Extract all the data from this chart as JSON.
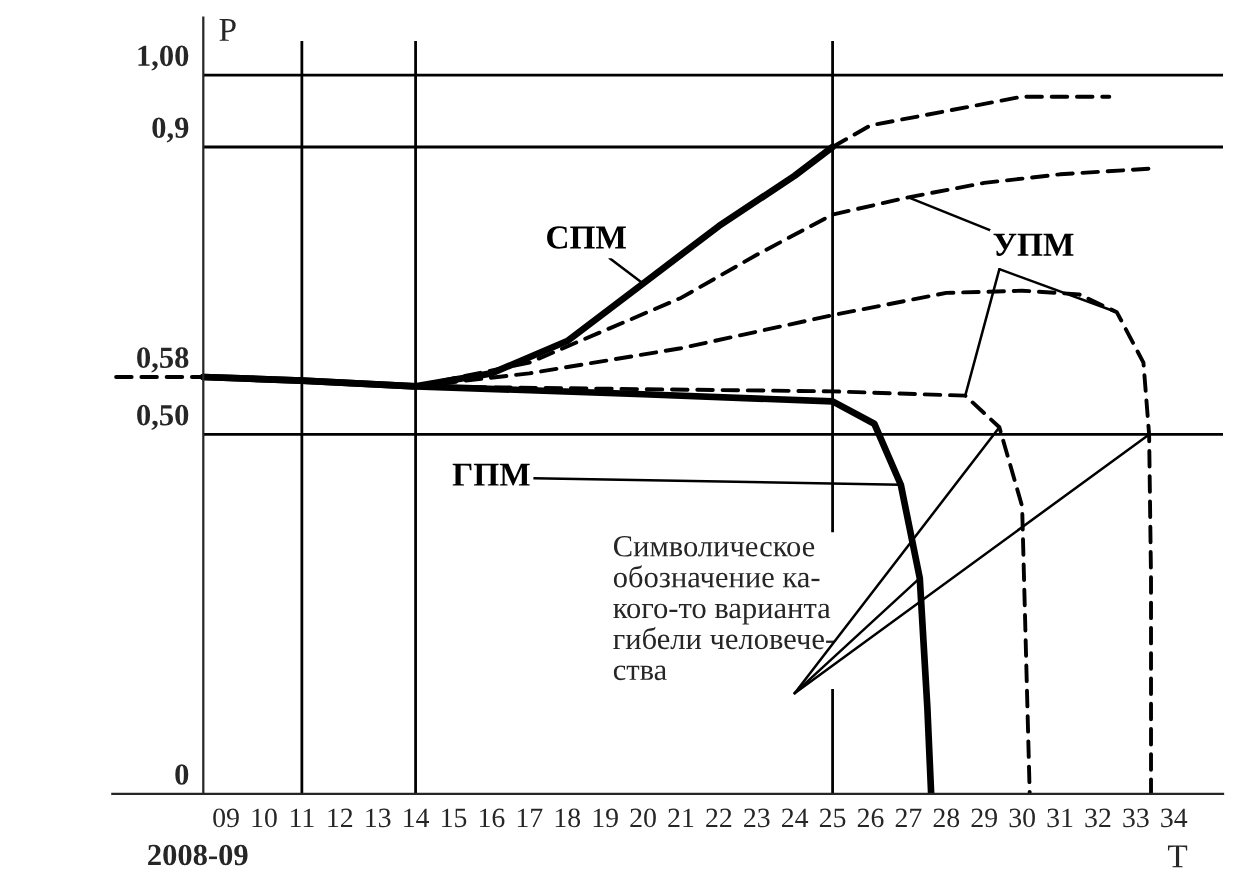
{
  "chart_data": {
    "type": "line",
    "xlabel": "T",
    "ylabel": "P",
    "xlim": [
      6,
      35.3
    ],
    "ylim": [
      0,
      1.08
    ],
    "xticks": [
      {
        "value": 9,
        "label": "09"
      },
      {
        "value": 10,
        "label": "10"
      },
      {
        "value": 11,
        "label": "11"
      },
      {
        "value": 12,
        "label": "12"
      },
      {
        "value": 13,
        "label": "13"
      },
      {
        "value": 14,
        "label": "14"
      },
      {
        "value": 15,
        "label": "15"
      },
      {
        "value": 16,
        "label": "16"
      },
      {
        "value": 17,
        "label": "17"
      },
      {
        "value": 18,
        "label": "18"
      },
      {
        "value": 19,
        "label": "19"
      },
      {
        "value": 20,
        "label": "20"
      },
      {
        "value": 21,
        "label": "21"
      },
      {
        "value": 22,
        "label": "22"
      },
      {
        "value": 23,
        "label": "23"
      },
      {
        "value": 24,
        "label": "24"
      },
      {
        "value": 25,
        "label": "25"
      },
      {
        "value": 26,
        "label": "26"
      },
      {
        "value": 27,
        "label": "27"
      },
      {
        "value": 28,
        "label": "28"
      },
      {
        "value": 29,
        "label": "29"
      },
      {
        "value": 30,
        "label": "30"
      },
      {
        "value": 31,
        "label": "31"
      },
      {
        "value": 32,
        "label": "32"
      },
      {
        "value": 33,
        "label": "33"
      },
      {
        "value": 34,
        "label": "34"
      }
    ],
    "yticks": [
      0,
      {
        "value": 0.5,
        "label": "0,50"
      },
      {
        "value": 0.58,
        "label": "0,58"
      },
      {
        "value": 0.9,
        "label": "0,9"
      },
      {
        "value": 1.0,
        "label": "1,00"
      }
    ],
    "series": [
      {
        "name": "СПМ",
        "color": "#000000",
        "line_style": "solid",
        "x": [
          8.4,
          11,
          14,
          16,
          18,
          20,
          22,
          24,
          25
        ],
        "values": [
          0.58,
          0.575,
          0.567,
          0.585,
          0.63,
          0.71,
          0.79,
          0.86,
          0.9
        ]
      },
      {
        "color": "#000000",
        "line_style": "dashed",
        "x": [
          25,
          26,
          28,
          30,
          32.3
        ],
        "values": [
          0.9,
          0.93,
          0.95,
          0.97,
          0.97
        ]
      },
      {
        "name": "ГПМ",
        "color": "#000000",
        "line_style": "solid",
        "x": [
          8.4,
          11,
          14,
          20,
          25,
          26.1,
          26.8,
          27.3,
          27.5,
          27.6
        ],
        "values": [
          0.58,
          0.575,
          0.567,
          0.556,
          0.546,
          0.515,
          0.43,
          0.3,
          0.12,
          0
        ]
      },
      {
        "name": "УПМ",
        "color": "#000000",
        "line_style": "dashed",
        "x": [
          14,
          17,
          19,
          21,
          23,
          25,
          27,
          29,
          31,
          33.4
        ],
        "values": [
          0.567,
          0.6,
          0.645,
          0.69,
          0.75,
          0.806,
          0.83,
          0.85,
          0.862,
          0.87
        ]
      },
      {
        "color": "#000000",
        "line_style": "dashed",
        "x": [
          14,
          17,
          21,
          25,
          28,
          30,
          31.5,
          32.5,
          33.2,
          33.35,
          33.4,
          33.4
        ],
        "values": [
          0.567,
          0.585,
          0.62,
          0.666,
          0.697,
          0.7,
          0.695,
          0.67,
          0.6,
          0.5,
          0.3,
          0
        ]
      },
      {
        "color": "#000000",
        "line_style": "dashed",
        "x": [
          6.1,
          8.4,
          14,
          20,
          25,
          28.5,
          29.4,
          30,
          30.2
        ],
        "values": [
          0.58,
          0.58,
          0.567,
          0.563,
          0.56,
          0.554,
          0.51,
          0.4,
          0
        ]
      }
    ],
    "ref_lines": [
      {
        "axis": "y",
        "value": 1.0
      },
      {
        "axis": "y",
        "value": 0.9
      },
      {
        "axis": "y",
        "value": 0.5
      },
      {
        "axis": "x",
        "value": 11
      },
      {
        "axis": "x",
        "value": 14
      },
      {
        "axis": "x",
        "value": 25
      }
    ],
    "annotations": [
      "Символическое\nобозначение ка-\nкого-то варианта\nгибели человече-\nства",
      "2008-09"
    ],
    "grid": false,
    "legend": false
  }
}
